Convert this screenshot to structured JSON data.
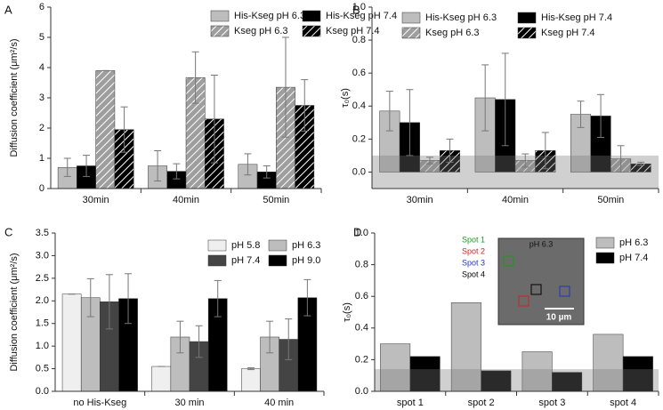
{
  "chart_data": [
    {
      "type": "bar",
      "panel_label": "A",
      "y_label": "Diffusion coefficient (μm²/s)",
      "categories": [
        "30min",
        "40min",
        "50min"
      ],
      "series": [
        {
          "name": "His-Kseg pH 6.3",
          "color": "#bdbdbd",
          "hatch": false,
          "values": [
            0.7,
            0.75,
            0.8
          ],
          "errors": [
            0.3,
            0.5,
            0.35
          ]
        },
        {
          "name": "His-Kseg pH 7.4",
          "color": "#000000",
          "hatch": false,
          "values": [
            0.75,
            0.57,
            0.55
          ],
          "errors": [
            0.35,
            0.25,
            0.2
          ]
        },
        {
          "name": "Kseg pH 6.3",
          "color": "#9e9e9e",
          "hatch": true,
          "values": [
            3.9,
            3.67,
            3.35
          ],
          "errors": [
            0,
            0.85,
            1.65
          ]
        },
        {
          "name": "Kseg pH 7.4",
          "color": "#000000",
          "hatch": true,
          "values": [
            1.95,
            2.3,
            2.75
          ],
          "errors": [
            0.75,
            1.45,
            0.85
          ]
        }
      ],
      "ylim": [
        0,
        6
      ],
      "yticks": [
        0,
        1,
        2,
        3,
        4,
        5,
        6
      ]
    },
    {
      "type": "bar",
      "panel_label": "B",
      "y_label": "τ₀(s)",
      "categories": [
        "30min",
        "40min",
        "50min"
      ],
      "series": [
        {
          "name": "His-Kseg pH 6.3",
          "color": "#bdbdbd",
          "hatch": false,
          "values": [
            0.37,
            0.45,
            0.35
          ],
          "errors": [
            0.12,
            0.2,
            0.08
          ]
        },
        {
          "name": "His-Kseg pH 7.4",
          "color": "#000000",
          "hatch": false,
          "values": [
            0.3,
            0.44,
            0.34
          ],
          "errors": [
            0.2,
            0.28,
            0.13
          ]
        },
        {
          "name": "Kseg pH 6.3",
          "color": "#9e9e9e",
          "hatch": true,
          "values": [
            0.07,
            0.07,
            0.08
          ],
          "errors": [
            0.02,
            0.04,
            0.08
          ]
        },
        {
          "name": "Kseg pH 7.4",
          "color": "#000000",
          "hatch": true,
          "values": [
            0.13,
            0.13,
            0.05
          ],
          "errors": [
            0.07,
            0.11,
            0.01
          ]
        }
      ],
      "band": [
        -0.1,
        0.1
      ],
      "ylim": [
        -0.1,
        1.0
      ],
      "yticks": [
        {
          "value": 0,
          "label": "0.0"
        },
        0.2,
        0.4,
        0.6,
        0.8,
        {
          "value": 1,
          "label": "1.0"
        }
      ]
    },
    {
      "type": "bar",
      "panel_label": "C",
      "y_label": "Diffusion coefficient (μm²/s)",
      "categories": [
        "no His-Kseg",
        "30 min",
        "40 min"
      ],
      "series": [
        {
          "name": "pH 5.8",
          "color": "#efefef",
          "hatch": false,
          "values": [
            2.15,
            0.55,
            0.5
          ],
          "errors": [
            0,
            0,
            0.02
          ]
        },
        {
          "name": "pH 6.3",
          "color": "#bdbdbd",
          "hatch": false,
          "values": [
            2.07,
            1.2,
            1.2
          ],
          "errors": [
            0.42,
            0.35,
            0.35
          ]
        },
        {
          "name": "pH 7.4",
          "color": "#444444",
          "hatch": false,
          "values": [
            1.98,
            1.1,
            1.15
          ],
          "errors": [
            0.6,
            0.35,
            0.45
          ]
        },
        {
          "name": "pH 9.0",
          "color": "#000000",
          "hatch": false,
          "values": [
            2.05,
            2.05,
            2.07
          ],
          "errors": [
            0.55,
            0.4,
            0.4
          ]
        }
      ],
      "ylim": [
        0,
        3.5
      ],
      "yticks": [
        {
          "value": 0,
          "label": "0.0"
        },
        0.5,
        {
          "value": 1,
          "label": "1.0"
        },
        1.5,
        {
          "value": 2,
          "label": "2.0"
        },
        2.5,
        {
          "value": 3,
          "label": "3.0"
        },
        3.5
      ]
    },
    {
      "type": "bar",
      "panel_label": "D",
      "y_label": "τ₀(s)",
      "categories": [
        "spot 1",
        "spot 2",
        "spot 3",
        "spot 4"
      ],
      "series": [
        {
          "name": "pH 6.3",
          "color": "#bdbdbd",
          "hatch": false,
          "values": [
            0.3,
            0.56,
            0.25,
            0.36
          ]
        },
        {
          "name": "pH 7.4",
          "color": "#000000",
          "hatch": false,
          "values": [
            0.22,
            0.13,
            0.12,
            0.22
          ]
        }
      ],
      "band": [
        0,
        0.14
      ],
      "ylim": [
        0,
        1.0
      ],
      "yticks": [
        {
          "value": 0,
          "label": "0.0"
        },
        0.2,
        0.4,
        0.6,
        0.8,
        {
          "value": 1,
          "label": "1.0"
        }
      ],
      "inset": {
        "title": "pH 6.3",
        "spots": [
          "Spot 1",
          "Spot 2",
          "Spot 3",
          "Spot 4"
        ],
        "scale_bar": "10 µm"
      }
    }
  ]
}
